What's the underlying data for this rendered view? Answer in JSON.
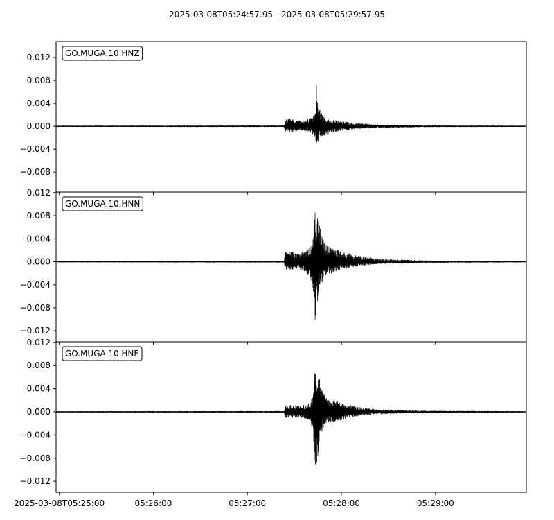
{
  "chart_data": {
    "type": "line",
    "title": "2025-03-08T05:24:57.95  -  2025-03-08T05:29:57.95",
    "x_ticks": [
      "2025-03-08T05:25:00",
      "05:26:00",
      "05:27:00",
      "05:28:00",
      "05:29:00"
    ],
    "x_tick_seconds": [
      2.05,
      62.05,
      122.05,
      182.05,
      242.05
    ],
    "xlim_seconds": [
      0,
      300
    ],
    "colors": {
      "trace": "#000000",
      "axis": "#000000",
      "background": "#ffffff"
    },
    "grid": false,
    "panels": [
      {
        "channel": "GO.MUGA.10.HNZ",
        "ylim": [
          -0.0115,
          0.0148
        ],
        "y_ticks": [
          0.012,
          0.008,
          0.004,
          0.0,
          -0.004,
          -0.008
        ],
        "y_tick_labels": [
          "0.012",
          "0.008",
          "0.004",
          "0.000",
          "−0.004",
          "−0.008"
        ],
        "envelope": [
          {
            "t": 0,
            "max": 0.00012,
            "min": -0.00012
          },
          {
            "t": 145.5,
            "max": 0.00015,
            "min": -0.00015
          },
          {
            "t": 146.3,
            "max": 0.0012,
            "min": -0.0009
          },
          {
            "t": 150,
            "max": 0.0014,
            "min": -0.0011
          },
          {
            "t": 154,
            "max": 0.001,
            "min": -0.0008
          },
          {
            "t": 160,
            "max": 0.0012,
            "min": -0.0009
          },
          {
            "t": 163,
            "max": 0.0015,
            "min": -0.0012
          },
          {
            "t": 165,
            "max": 0.002,
            "min": -0.002
          },
          {
            "t": 166.2,
            "max": 0.0075,
            "min": -0.0043
          },
          {
            "t": 168,
            "max": 0.003,
            "min": -0.002
          },
          {
            "t": 172,
            "max": 0.0015,
            "min": -0.0015
          },
          {
            "t": 180,
            "max": 0.001,
            "min": -0.0009
          },
          {
            "t": 190,
            "max": 0.0006,
            "min": -0.0005
          },
          {
            "t": 205,
            "max": 0.0003,
            "min": -0.0003
          },
          {
            "t": 240,
            "max": 0.00015,
            "min": -0.00015
          },
          {
            "t": 300,
            "max": 0.00012,
            "min": -0.00012
          }
        ]
      },
      {
        "channel": "GO.MUGA.10.HNN",
        "ylim": [
          -0.0139,
          0.0121
        ],
        "y_ticks": [
          0.012,
          0.008,
          0.004,
          0.0,
          -0.004,
          -0.008,
          -0.012
        ],
        "y_tick_labels": [
          "0.012",
          "0.008",
          "0.004",
          "0.000",
          "−0.004",
          "−0.008",
          "−0.012"
        ],
        "envelope": [
          {
            "t": 0,
            "max": 0.00012,
            "min": -0.00012
          },
          {
            "t": 145.5,
            "max": 0.00015,
            "min": -0.00015
          },
          {
            "t": 146.3,
            "max": 0.0022,
            "min": -0.0015
          },
          {
            "t": 150,
            "max": 0.0018,
            "min": -0.0014
          },
          {
            "t": 155,
            "max": 0.0015,
            "min": -0.0013
          },
          {
            "t": 160,
            "max": 0.0022,
            "min": -0.002
          },
          {
            "t": 164,
            "max": 0.004,
            "min": -0.005
          },
          {
            "t": 165.3,
            "max": 0.009,
            "min": -0.0113
          },
          {
            "t": 167,
            "max": 0.0078,
            "min": -0.0065
          },
          {
            "t": 169,
            "max": 0.0055,
            "min": -0.004
          },
          {
            "t": 172,
            "max": 0.003,
            "min": -0.0025
          },
          {
            "t": 180,
            "max": 0.002,
            "min": -0.0015
          },
          {
            "t": 190,
            "max": 0.0012,
            "min": -0.0009
          },
          {
            "t": 205,
            "max": 0.0005,
            "min": -0.0004
          },
          {
            "t": 240,
            "max": 0.0002,
            "min": -0.0002
          },
          {
            "t": 300,
            "max": 0.00012,
            "min": -0.00012
          }
        ]
      },
      {
        "channel": "GO.MUGA.10.HNE",
        "ylim": [
          -0.0139,
          0.0121
        ],
        "y_ticks": [
          0.012,
          0.008,
          0.004,
          0.0,
          -0.004,
          -0.008,
          -0.012
        ],
        "y_tick_labels": [
          "0.012",
          "0.008",
          "0.004",
          "0.000",
          "−0.004",
          "−0.008",
          "−0.012"
        ],
        "envelope": [
          {
            "t": 0,
            "max": 0.00012,
            "min": -0.00012
          },
          {
            "t": 145.5,
            "max": 0.00015,
            "min": -0.00015
          },
          {
            "t": 146.3,
            "max": 0.0012,
            "min": -0.0012
          },
          {
            "t": 150,
            "max": 0.0012,
            "min": -0.001
          },
          {
            "t": 156,
            "max": 0.0011,
            "min": -0.001
          },
          {
            "t": 162,
            "max": 0.0015,
            "min": -0.0015
          },
          {
            "t": 164,
            "max": 0.003,
            "min": -0.004
          },
          {
            "t": 165.3,
            "max": 0.0108,
            "min": -0.0131
          },
          {
            "t": 167,
            "max": 0.007,
            "min": -0.0095
          },
          {
            "t": 169,
            "max": 0.0045,
            "min": -0.004
          },
          {
            "t": 172,
            "max": 0.0025,
            "min": -0.002
          },
          {
            "t": 180,
            "max": 0.0018,
            "min": -0.0016
          },
          {
            "t": 190,
            "max": 0.001,
            "min": -0.0009
          },
          {
            "t": 205,
            "max": 0.0004,
            "min": -0.0004
          },
          {
            "t": 240,
            "max": 0.0002,
            "min": -0.0002
          },
          {
            "t": 300,
            "max": 0.00012,
            "min": -0.00012
          }
        ]
      }
    ]
  }
}
